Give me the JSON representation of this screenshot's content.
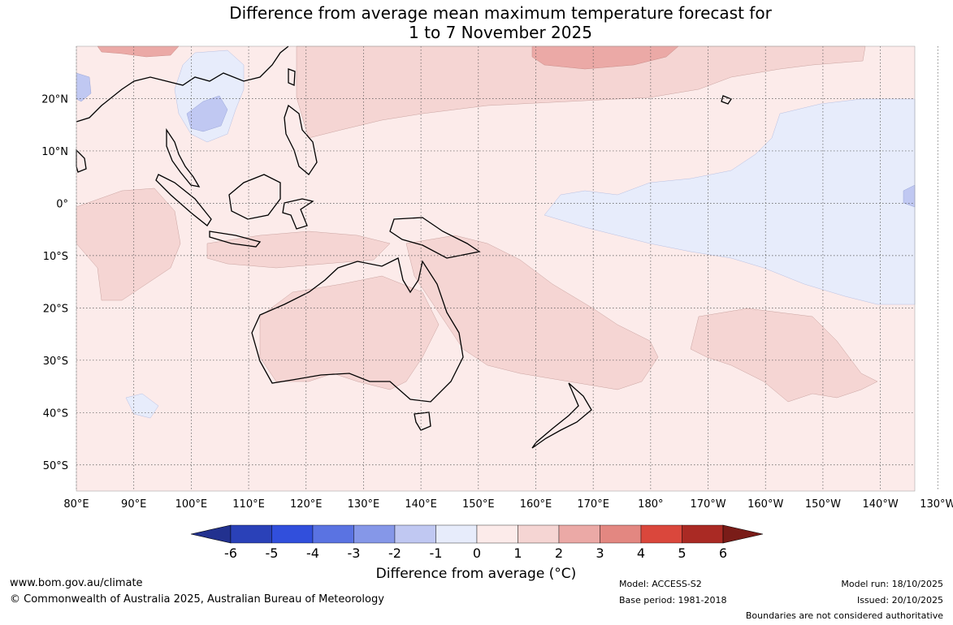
{
  "title": {
    "line1": "Difference from average mean maximum temperature forecast for",
    "line2": "1 to 7 November 2025"
  },
  "map": {
    "lon_range": [
      80,
      226
    ],
    "lat_range": [
      -55,
      30
    ],
    "lon_ticks": [
      "80°E",
      "90°E",
      "100°E",
      "110°E",
      "120°E",
      "130°E",
      "140°E",
      "150°E",
      "160°E",
      "170°E",
      "180°",
      "170°W",
      "160°W",
      "150°W",
      "140°W",
      "130°W"
    ],
    "lat_ticks": [
      "20°N",
      "10°N",
      "0°",
      "10°S",
      "20°S",
      "30°S",
      "40°S",
      "50°S"
    ],
    "background_color": "#fcebea"
  },
  "legend": {
    "ticks": [
      "-6",
      "-5",
      "-4",
      "-3",
      "-2",
      "-1",
      "0",
      "1",
      "2",
      "3",
      "4",
      "5",
      "6"
    ],
    "colors": [
      "#22318f",
      "#2a41b8",
      "#314fdc",
      "#5a73e2",
      "#8597e8",
      "#c0c8f2",
      "#e7ecfb",
      "#fcebea",
      "#f5d5d3",
      "#eba9a6",
      "#e38781",
      "#da473c",
      "#aa2a24",
      "#7a1c18"
    ],
    "title": "Difference from average (°C)"
  },
  "footer": {
    "website": "www.bom.gov.au/climate",
    "copyright": "© Commonwealth of Australia 2025, Australian Bureau of Meteorology",
    "model": "Model: ACCESS-S2",
    "base_period": "Base period: 1981-2018",
    "model_run": "Model run: 18/10/2025",
    "issued": "Issued: 20/10/2025",
    "disclaimer": "Boundaries are not considered authoritative"
  }
}
